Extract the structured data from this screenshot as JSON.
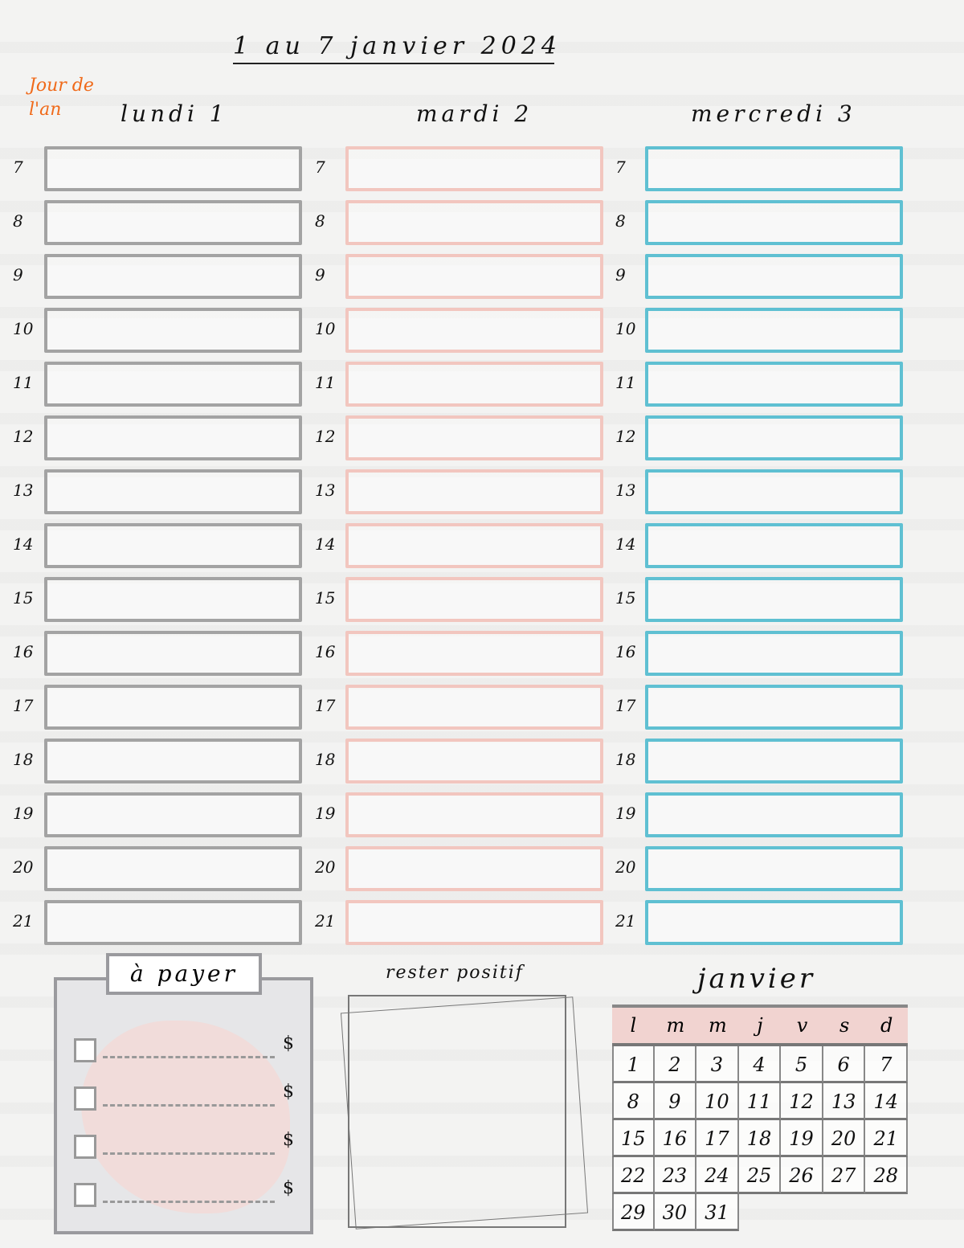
{
  "header": {
    "title": "1 au 7 janvier 2024",
    "holiday_note": "Jour de l'an"
  },
  "days": [
    {
      "label": "lundi 1",
      "color": "#a3a3a3"
    },
    {
      "label": "mardi 2",
      "color": "#f2c6bf"
    },
    {
      "label": "mercredi 3",
      "color": "#5fc0d2"
    }
  ],
  "hours": [
    "7",
    "8",
    "9",
    "10",
    "11",
    "12",
    "13",
    "14",
    "15",
    "16",
    "17",
    "18",
    "19",
    "20",
    "21"
  ],
  "to_pay": {
    "title": "à payer",
    "currency": "$",
    "items": 4
  },
  "stay_positive": {
    "title": "rester positif"
  },
  "mini_calendar": {
    "month": "janvier",
    "weekdays": [
      "l",
      "m",
      "m",
      "j",
      "v",
      "s",
      "d"
    ],
    "dates": [
      "1",
      "2",
      "3",
      "4",
      "5",
      "6",
      "7",
      "8",
      "9",
      "10",
      "11",
      "12",
      "13",
      "14",
      "15",
      "16",
      "17",
      "18",
      "19",
      "20",
      "21",
      "22",
      "23",
      "24",
      "25",
      "26",
      "27",
      "28",
      "29",
      "30",
      "31"
    ]
  }
}
